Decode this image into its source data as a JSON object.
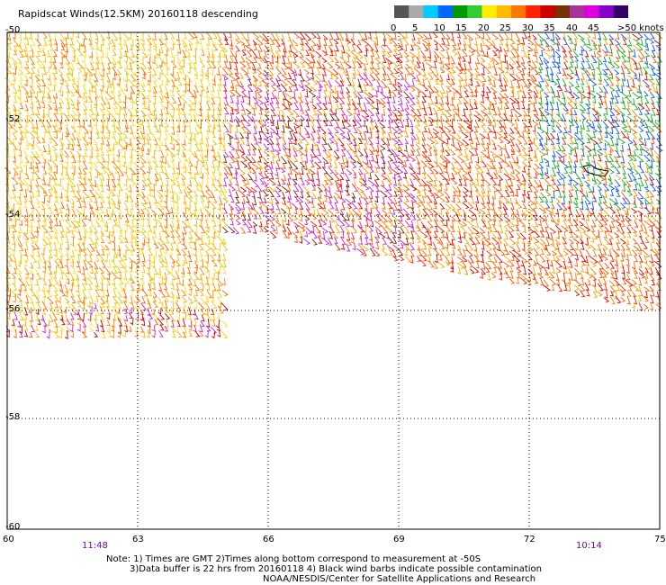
{
  "title": "Rapidscat Winds(12.5KM) 20160118 descending",
  "legend": {
    "colors": [
      "#555555",
      "#aaaaaa",
      "#00ccff",
      "#0066ff",
      "#009900",
      "#33cc33",
      "#ffee00",
      "#ffbb00",
      "#ff7700",
      "#ff2200",
      "#cc0000",
      "#773300",
      "#aa3399",
      "#dd00dd",
      "#8800cc",
      "#330066"
    ],
    "labels": [
      "0",
      "5",
      "10",
      "15",
      "20",
      "25",
      "30",
      "35",
      "40",
      "45",
      ">50 knots"
    ]
  },
  "lat_labels": [
    "-50",
    "-52",
    "-54",
    "-56",
    "-58",
    "-60"
  ],
  "lon_labels": [
    "60",
    "63",
    "66",
    "69",
    "72",
    "75"
  ],
  "times": [
    "11:48",
    "10:14"
  ],
  "notes": [
    "Note: 1) Times are GMT 2)Times along bottom correspond to measurement at -50S",
    "3)Data buffer is 22 hrs from 20160118 4) Black wind barbs indicate possible contamination",
    "NOAA/NESDIS/Center for Satellite Applications and Research"
  ]
}
